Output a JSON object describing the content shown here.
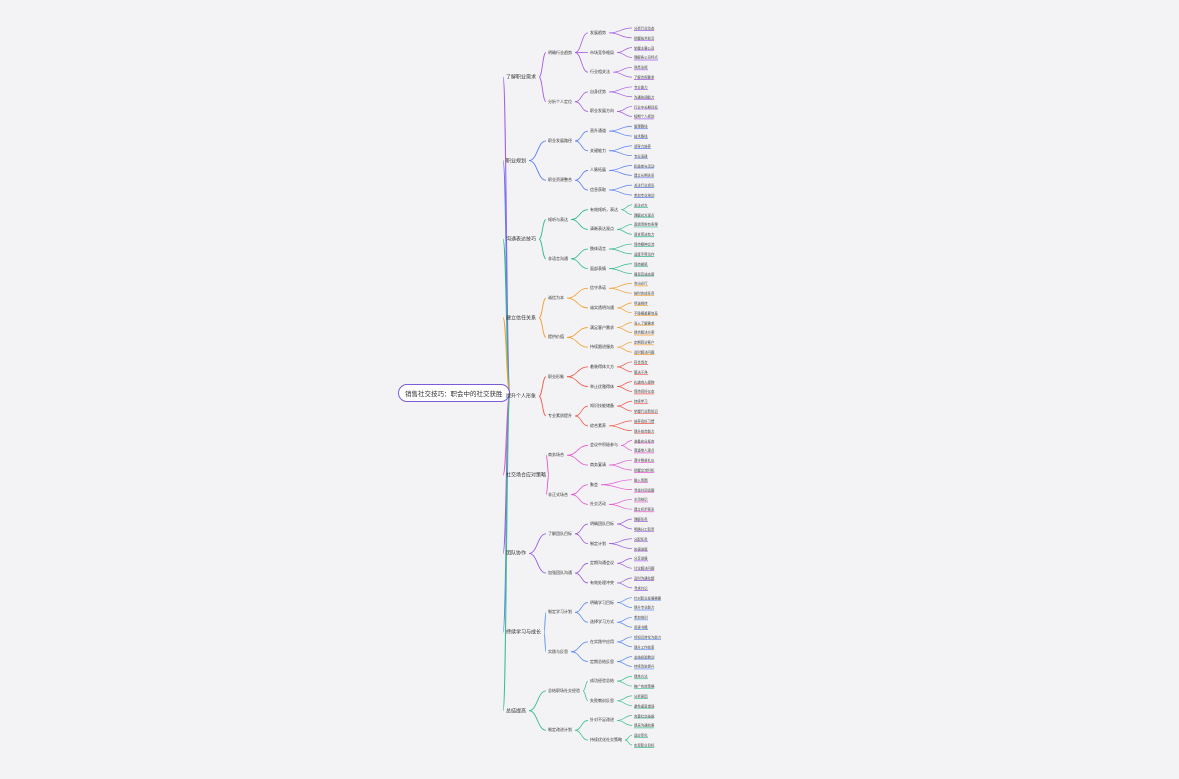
{
  "root": {
    "label": "销售社交技巧：职会中的社交获胜",
    "color": "#7b5cd6",
    "children": [
      {
        "label": "了解职业需求",
        "color": "#a55ee6",
        "children": [
          {
            "label": "明确行业趋势",
            "children": [
              {
                "label": "发展趋势",
                "children": [
                  "分析行业动态",
                  "把握技术前沿"
                ]
              },
              {
                "label": "市场竞争格局",
                "children": [
                  "掌握主要公司",
                  "理解各公司特点"
                ]
              },
              {
                "label": "行业相关法",
                "children": [
                  "熟悉法规",
                  "了解合规要求"
                ]
              }
            ]
          },
          {
            "label": "分析个人定位",
            "children": [
              {
                "label": "自身优势",
                "children": [
                  "专业能力",
                  "沟通协调能力"
                ]
              },
              {
                "label": "职业发展方向",
                "children": [
                  "行业中长期目标",
                  "短期个人规划"
                ]
              }
            ]
          }
        ]
      },
      {
        "label": "职业规划",
        "color": "#5b7ff0",
        "children": [
          {
            "label": "职业发展路径",
            "children": [
              {
                "label": "晋升通道",
                "children": [
                  "管理路线",
                  "技术路线"
                ]
              },
              {
                "label": "关键能力",
                "children": [
                  "领导力培养",
                  "专业深耕"
                ]
              }
            ]
          },
          {
            "label": "职业资源整合",
            "children": [
              {
                "label": "人脉拓展",
                "children": [
                  "积极参与活动",
                  "建立长期关系"
                ]
              },
              {
                "label": "信息获取",
                "children": [
                  "关注行业资讯",
                  "参加专业培训"
                ]
              }
            ]
          }
        ]
      },
      {
        "label": "沟通表达技巧",
        "color": "#2fb98f",
        "children": [
          {
            "label": "倾听与表达",
            "children": [
              {
                "label": "有效倾听，表达",
                "children": [
                  "关注对方",
                  "理解对方观点"
                ]
              },
              {
                "label": "清晰表达观点",
                "children": [
                  "逻辑清晰有条理",
                  "语言简洁有力"
                ]
              }
            ]
          },
          {
            "label": "非语言沟通",
            "children": [
              {
                "label": "肢体语言",
                "children": [
                  "保持眼神交流",
                  "适度手势动作"
                ]
              },
              {
                "label": "面部表情",
                "children": [
                  "保持微笑",
                  "展现真诚态度"
                ]
              }
            ]
          }
        ]
      },
      {
        "label": "建立信任关系",
        "color": "#f0a030",
        "children": [
          {
            "label": "诚信为本",
            "children": [
              {
                "label": "信守承诺",
                "children": [
                  "言出必行",
                  "按时完成任务"
                ]
              },
              {
                "label": "诚实透明沟通",
                "children": [
                  "坦诚相待",
                  "不隐瞒重要信息"
                ]
              }
            ]
          },
          {
            "label": "提供价值",
            "children": [
              {
                "label": "满足客户需求",
                "children": [
                  "深入了解需求",
                  "提供解决方案"
                ]
              },
              {
                "label": "持续跟进服务",
                "children": [
                  "定期回访客户",
                  "及时解决问题"
                ]
              }
            ]
          }
        ]
      },
      {
        "label": "提升个人形象",
        "color": "#f05a4a",
        "children": [
          {
            "label": "职业形象",
            "children": [
              {
                "label": "着装得体大方",
                "children": [
                  "符合场合",
                  "整洁干净"
                ]
              },
              {
                "label": "举止优雅得体",
                "children": [
                  "礼貌待人接物",
                  "保持良好仪态"
                ]
              }
            ]
          },
          {
            "label": "专业素质提升",
            "children": [
              {
                "label": "知识技能储备",
                "children": [
                  "持续学习",
                  "掌握行业新知识"
                ]
              },
              {
                "label": "综合素养",
                "children": [
                  "培养良好习惯",
                  "提升综合能力"
                ]
              }
            ]
          }
        ]
      },
      {
        "label": "社交场合应对策略",
        "color": "#e25ad0",
        "children": [
          {
            "label": "商务场合",
            "children": [
              {
                "label": "会议中积极参与",
                "children": [
                  "准备充分发言",
                  "尊重他人观点"
                ]
              },
              {
                "label": "商务宴请",
                "children": [
                  "遵守餐桌礼仪",
                  "把握交流时机"
                ]
              }
            ]
          },
          {
            "label": "非正式场合",
            "children": [
              {
                "label": "聚会",
                "children": [
                  "融入氛围",
                  "寻找共同话题"
                ]
              },
              {
                "label": "社交活动",
                "children": [
                  "主动结识",
                  "建立初步联系"
                ]
              }
            ]
          }
        ]
      },
      {
        "label": "团队协作",
        "color": "#9a5ce0",
        "children": [
          {
            "label": "了解团队目标",
            "children": [
              {
                "label": "明确团队目标",
                "children": [
                  "理解任务",
                  "明确分工职责"
                ]
              },
              {
                "label": "制定计划",
                "children": [
                  "分配任务",
                  "协调进度"
                ]
              }
            ]
          },
          {
            "label": "加强团队沟通",
            "children": [
              {
                "label": "定期沟通会议",
                "children": [
                  "分享进展",
                  "讨论解决问题"
                ]
              },
              {
                "label": "有效处理冲突",
                "children": [
                  "及时沟通化解",
                  "寻求共识"
                ]
              }
            ]
          }
        ]
      },
      {
        "label": "持续学习与成长",
        "color": "#5a8cf0",
        "children": [
          {
            "label": "制定学习计划",
            "children": [
              {
                "label": "明确学习目标",
                "children": [
                  "针对职业发展需要",
                  "提升专业能力"
                ]
              },
              {
                "label": "选择学习方式",
                "children": [
                  "参加培训",
                  "阅读书籍"
                ]
              }
            ]
          },
          {
            "label": "实践与反思",
            "children": [
              {
                "label": "在实践中应用",
                "children": [
                  "将知识转化为能力",
                  "提升工作效率"
                ]
              },
              {
                "label": "定期总结反思",
                "children": [
                  "总结经验教训",
                  "持续改进提升"
                ]
              }
            ]
          }
        ]
      },
      {
        "label": "总结提高",
        "color": "#3cc08a",
        "children": [
          {
            "label": "总结职场社交经验",
            "children": [
              {
                "label": "成功经验总结",
                "children": [
                  "提炼方法",
                  "推广有效策略"
                ]
              },
              {
                "label": "失败教训反思",
                "children": [
                  "分析原因",
                  "避免重复错误"
                ]
              }
            ]
          },
          {
            "label": "制定改进计划",
            "children": [
              {
                "label": "针对不足改进",
                "children": [
                  "完善社交技能",
                  "提高沟通效果"
                ]
              },
              {
                "label": "持续优化社交策略",
                "children": [
                  "适应变化",
                  "实现职业目标"
                ]
              }
            ]
          }
        ]
      }
    ]
  }
}
